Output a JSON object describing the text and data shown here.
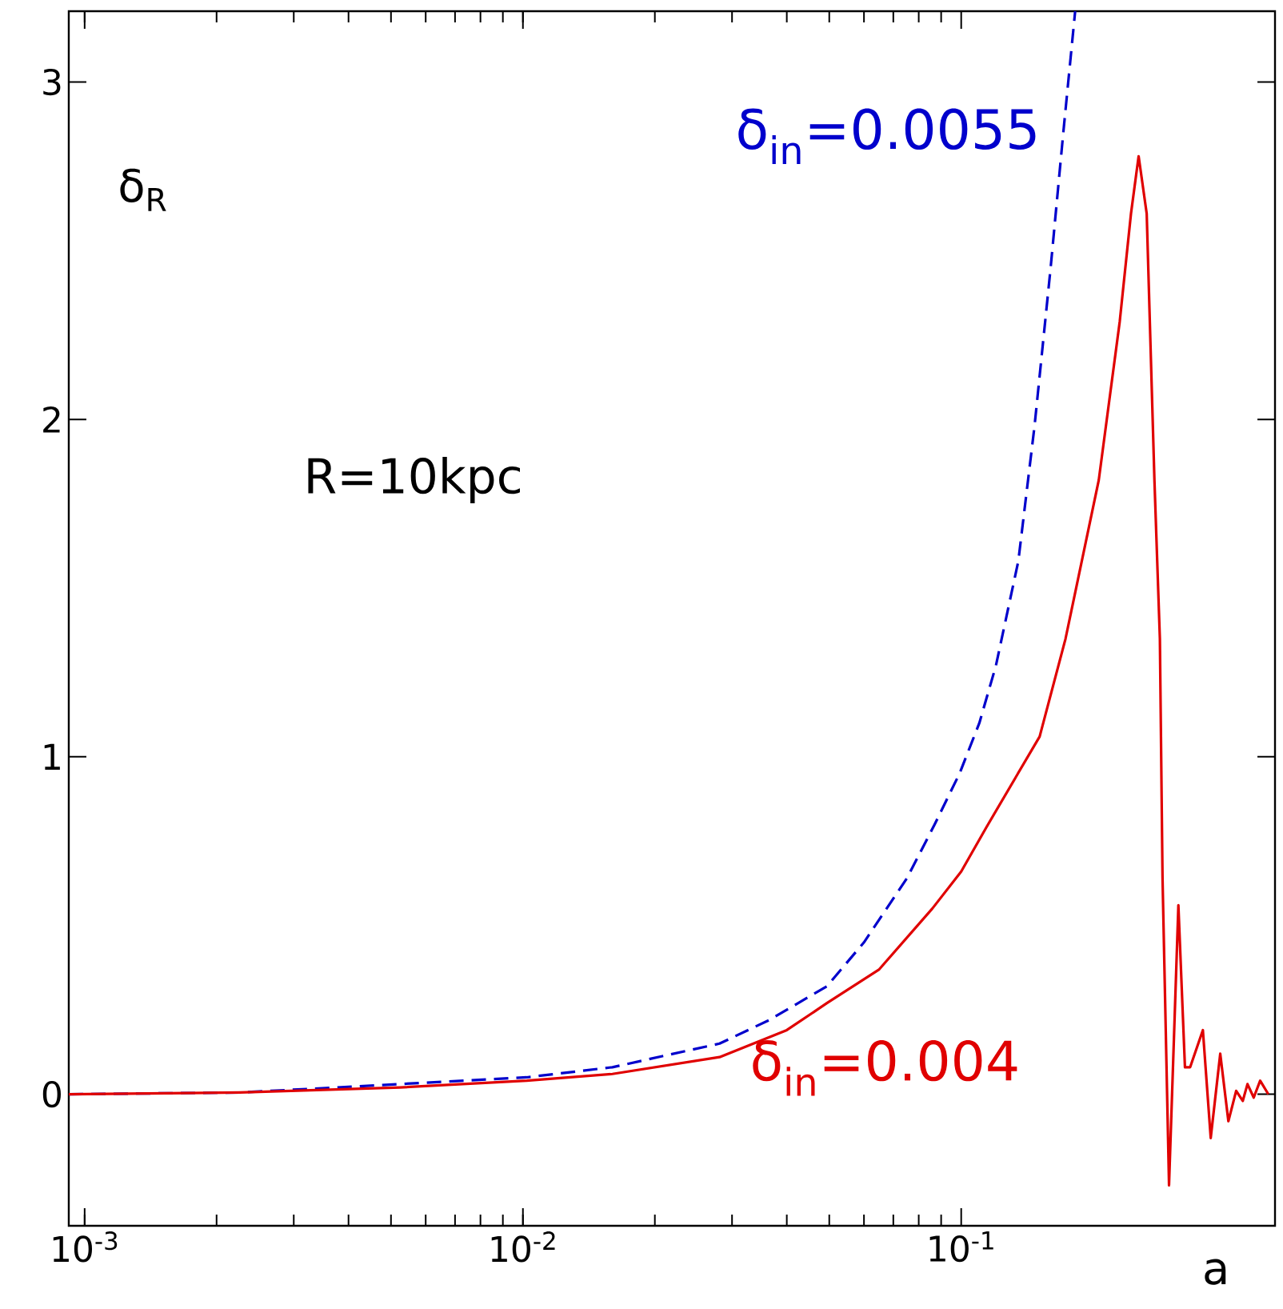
{
  "chart_data": {
    "type": "line",
    "xlabel": "a",
    "ylabel": "δ$_{R}$",
    "annotations": [
      "R=10kpc"
    ],
    "log": "x",
    "marker": "none",
    "xlim": [
      0.00092,
      0.52
    ],
    "ylim": [
      -0.39,
      3.21
    ],
    "xticks": [
      {
        "value": 0.001,
        "label": "10$^{-3}$"
      },
      {
        "value": 0.01,
        "label": "10$^{-2}$"
      },
      {
        "value": 0.1,
        "label": "10$^{-1}$"
      }
    ],
    "yticks": [
      0,
      1,
      2,
      3
    ],
    "series": [
      {
        "name": "δ$_{in}$=0.0055",
        "color": "#0000cc",
        "line_style": "dashed",
        "x": [
          0.00092,
          0.00226,
          0.00524,
          0.0102,
          0.016,
          0.0281,
          0.0365,
          0.0494,
          0.06,
          0.0752,
          0.087,
          0.0991,
          0.11,
          0.12,
          0.135,
          0.147,
          0.16,
          0.171,
          0.182
        ],
        "values": [
          0,
          0.005,
          0.03,
          0.05,
          0.08,
          0.15,
          0.22,
          0.32,
          0.45,
          0.64,
          0.8,
          0.95,
          1.1,
          1.27,
          1.58,
          1.98,
          2.45,
          2.85,
          3.21
        ]
      },
      {
        "name": "δ$_{in}$=0.004",
        "color": "#e00000",
        "line_style": "solid",
        "x": [
          0.00092,
          0.00226,
          0.00524,
          0.0102,
          0.016,
          0.0281,
          0.04,
          0.0494,
          0.065,
          0.0859,
          0.1,
          0.114,
          0.151,
          0.173,
          0.206,
          0.23,
          0.244,
          0.254,
          0.265,
          0.276,
          0.284,
          0.288,
          0.298,
          0.313,
          0.324,
          0.333,
          0.356,
          0.371,
          0.39,
          0.407,
          0.424,
          0.439,
          0.45,
          0.465,
          0.481,
          0.502
        ],
        "values": [
          0,
          0.005,
          0.02,
          0.04,
          0.06,
          0.11,
          0.19,
          0.27,
          0.37,
          0.55,
          0.66,
          0.79,
          1.06,
          1.35,
          1.82,
          2.29,
          2.61,
          2.78,
          2.61,
          1.82,
          1.35,
          0.64,
          -0.27,
          0.56,
          0.08,
          0.08,
          0.19,
          -0.13,
          0.12,
          -0.08,
          0.01,
          -0.02,
          0.03,
          -0.01,
          0.04,
          0.0
        ]
      }
    ]
  }
}
